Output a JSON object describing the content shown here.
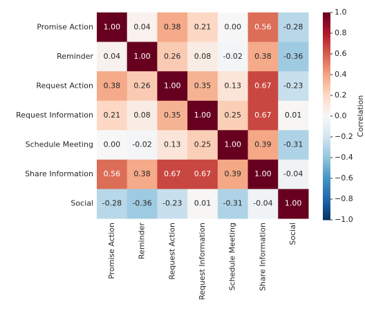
{
  "chart_data": {
    "type": "heatmap",
    "rows": [
      "Promise Action",
      "Reminder",
      "Request Action",
      "Request Information",
      "Schedule Meeting",
      "Share Information",
      "Social"
    ],
    "columns": [
      "Promise Action",
      "Reminder",
      "Request Action",
      "Request Information",
      "Schedule Meeting",
      "Share Information",
      "Social"
    ],
    "values": [
      [
        1,
        0.04,
        0.38,
        0.21,
        0,
        0.56,
        -0.28
      ],
      [
        0.04,
        1,
        0.26,
        0.08,
        -0.02,
        0.38,
        -0.36
      ],
      [
        0.38,
        0.26,
        1,
        0.35,
        0.13,
        0.67,
        -0.23
      ],
      [
        0.21,
        0.08,
        0.35,
        1,
        0.25,
        0.67,
        0.01
      ],
      [
        0,
        -0.02,
        0.13,
        0.25,
        1,
        0.39,
        -0.31
      ],
      [
        0.56,
        0.38,
        0.67,
        0.67,
        0.39,
        1,
        -0.04
      ],
      [
        -0.28,
        -0.36,
        -0.23,
        0.01,
        -0.31,
        -0.04,
        1
      ]
    ],
    "value_labels": [
      [
        "1.00",
        "0.04",
        "0.38",
        "0.21",
        "0.00",
        "0.56",
        "-0.28"
      ],
      [
        "0.04",
        "1.00",
        "0.26",
        "0.08",
        "-0.02",
        "0.38",
        "-0.36"
      ],
      [
        "0.38",
        "0.26",
        "1.00",
        "0.35",
        "0.13",
        "0.67",
        "-0.23"
      ],
      [
        "0.21",
        "0.08",
        "0.35",
        "1.00",
        "0.25",
        "0.67",
        "0.01"
      ],
      [
        "0.00",
        "-0.02",
        "0.13",
        "0.25",
        "1.00",
        "0.39",
        "-0.31"
      ],
      [
        "0.56",
        "0.38",
        "0.67",
        "0.67",
        "0.39",
        "1.00",
        "-0.04"
      ],
      [
        "-0.28",
        "-0.36",
        "-0.23",
        "0.01",
        "-0.31",
        "-0.04",
        "1.00"
      ]
    ],
    "colormap": [
      "#053061",
      "#2166ac",
      "#4393c3",
      "#92c5de",
      "#d1e5f0",
      "#f7f7f7",
      "#fddbc7",
      "#f4a582",
      "#d6604d",
      "#b2182b",
      "#67001f"
    ],
    "colorbar_label": "Correlation",
    "clim": [
      -1,
      1
    ],
    "cticks": [
      {
        "value": 1,
        "label": "1.0"
      },
      0.8,
      0.6,
      0.4,
      0.2,
      {
        "value": 0,
        "label": "0.0"
      },
      {
        "value": -0.2,
        "label": "−0.2"
      },
      {
        "value": -0.4,
        "label": "−0.4"
      },
      {
        "value": -0.6,
        "label": "−0.6"
      },
      {
        "value": -0.8,
        "label": "−0.8"
      },
      {
        "value": -1,
        "label": "−1.0"
      }
    ]
  }
}
